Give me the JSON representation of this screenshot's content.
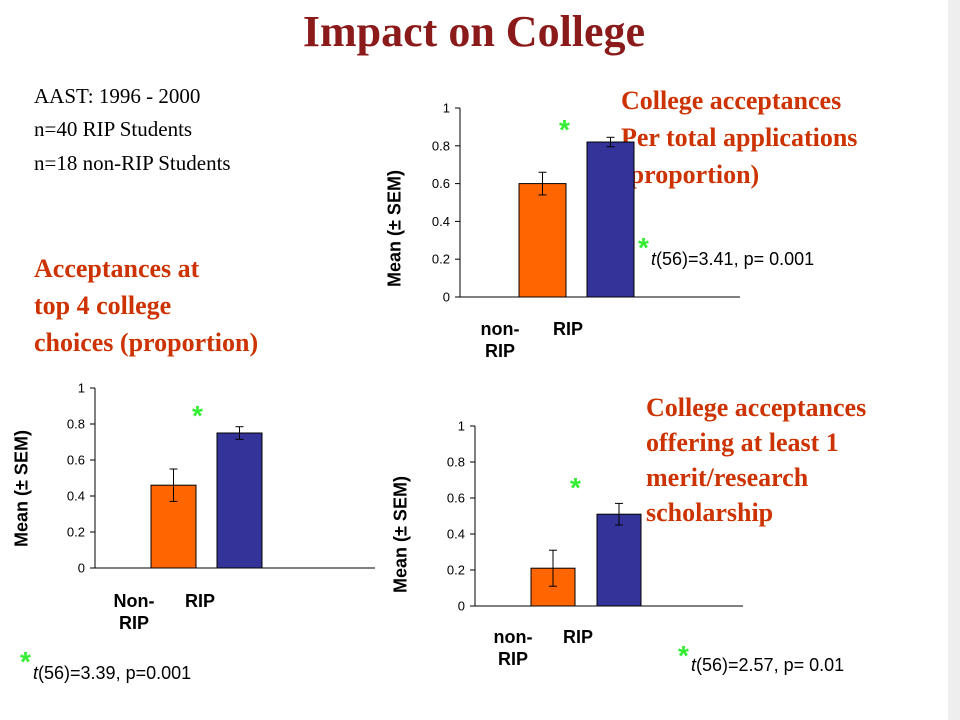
{
  "title": "Impact on College",
  "info_lines": [
    "AAST: 1996 - 2000",
    "n=40 RIP Students",
    "n=18 non-RIP Students"
  ],
  "colors": {
    "title": "#8b1a1a",
    "heading": "#cc3300",
    "non_rip_bar": "#ff6600",
    "rip_bar": "#333399",
    "significance_star": "#33ee33"
  },
  "significance_marker": "*",
  "chart_data": [
    {
      "type": "bar",
      "id": "per-total",
      "heading": [
        "College acceptances",
        "Per total applications",
        "(proportion)"
      ],
      "ylabel": "Mean (± SEM)",
      "category_lines": [
        [
          "non-",
          "RIP"
        ],
        [
          "RIP"
        ]
      ],
      "values": [
        0.6,
        0.82
      ],
      "errors": [
        0.06,
        0.025
      ],
      "significant": [
        false,
        true
      ],
      "ylim": [
        0,
        1
      ],
      "yticks": [
        "0",
        "0.2",
        "0.4",
        "0.6",
        "0.8",
        "1"
      ],
      "stat_t": "t",
      "stat_text": "(56)=3.41, p= 0.001"
    },
    {
      "type": "bar",
      "id": "top4",
      "heading": [
        "Acceptances at",
        "top 4 college",
        "choices (proportion)"
      ],
      "ylabel": "Mean (± SEM)",
      "category_lines": [
        [
          "Non-",
          "RIP"
        ],
        [
          "RIP"
        ]
      ],
      "values": [
        0.46,
        0.75
      ],
      "errors": [
        0.09,
        0.035
      ],
      "significant": [
        false,
        true
      ],
      "ylim": [
        0,
        1
      ],
      "yticks": [
        "0",
        "0.2",
        "0.4",
        "0.6",
        "0.8",
        "1"
      ],
      "stat_t": "t",
      "stat_text": "(56)=3.39, p=0.001"
    },
    {
      "type": "bar",
      "id": "scholarship",
      "heading": [
        "College acceptances",
        "offering at least 1",
        "merit/research",
        "scholarship"
      ],
      "ylabel": "Mean (± SEM)",
      "category_lines": [
        [
          "non-",
          "RIP"
        ],
        [
          "RIP"
        ]
      ],
      "values": [
        0.21,
        0.51
      ],
      "errors": [
        0.1,
        0.06
      ],
      "significant": [
        false,
        true
      ],
      "ylim": [
        0,
        1
      ],
      "yticks": [
        "0",
        "0.2",
        "0.4",
        "0.6",
        "0.8",
        "1"
      ],
      "stat_t": "t",
      "stat_text": "(56)=2.57, p= 0.01"
    }
  ]
}
